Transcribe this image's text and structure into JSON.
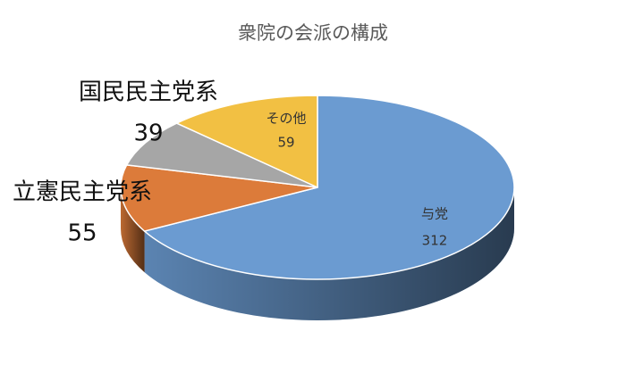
{
  "chart_data": {
    "type": "pie",
    "title": "衆院の会派の構成",
    "categories": [
      "与党",
      "立憲民主党系",
      "国民民主党系",
      "その他"
    ],
    "values": [
      312,
      55,
      39,
      59
    ],
    "colors": [
      "#6b9bd1",
      "#dc7b3a",
      "#a6a6a6",
      "#f2c043"
    ]
  }
}
